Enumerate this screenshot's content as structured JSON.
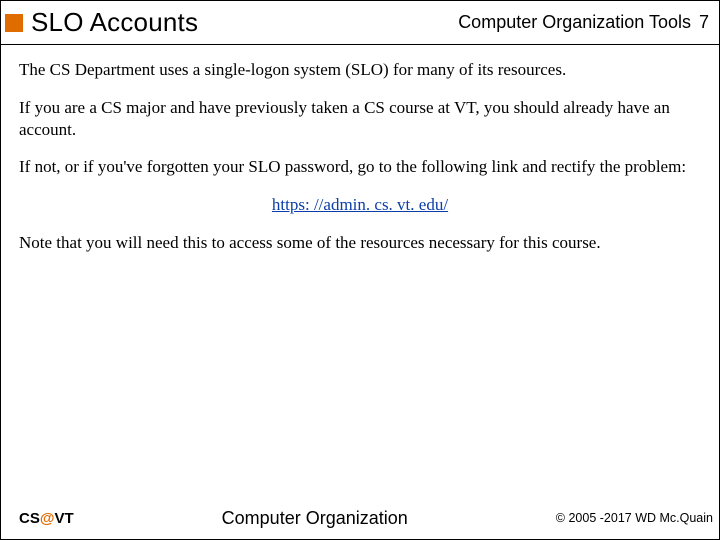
{
  "colors": {
    "accent": "#e06c00",
    "link": "#0b3ea8",
    "border": "#000000",
    "background": "#ffffff"
  },
  "header": {
    "title": "SLO Accounts",
    "chapter": "Computer Organization Tools",
    "page_number": "7"
  },
  "body": {
    "p1": "The CS Department uses a single-logon system (SLO) for many of its resources.",
    "p2": "If you are a CS major and have previously taken a CS course at VT, you should already have an account.",
    "p3": "If not, or if you've forgotten your SLO password, go to the following link and rectify the problem:",
    "link_text": "https: //admin. cs. vt. edu/",
    "p4": "Note that you will need this to access some of the resources necessary for this course."
  },
  "footer": {
    "left_pre": "CS",
    "left_at": "@",
    "left_post": "VT",
    "center": "Computer Organization",
    "right": "© 2005 -2017 WD Mc.Quain"
  }
}
